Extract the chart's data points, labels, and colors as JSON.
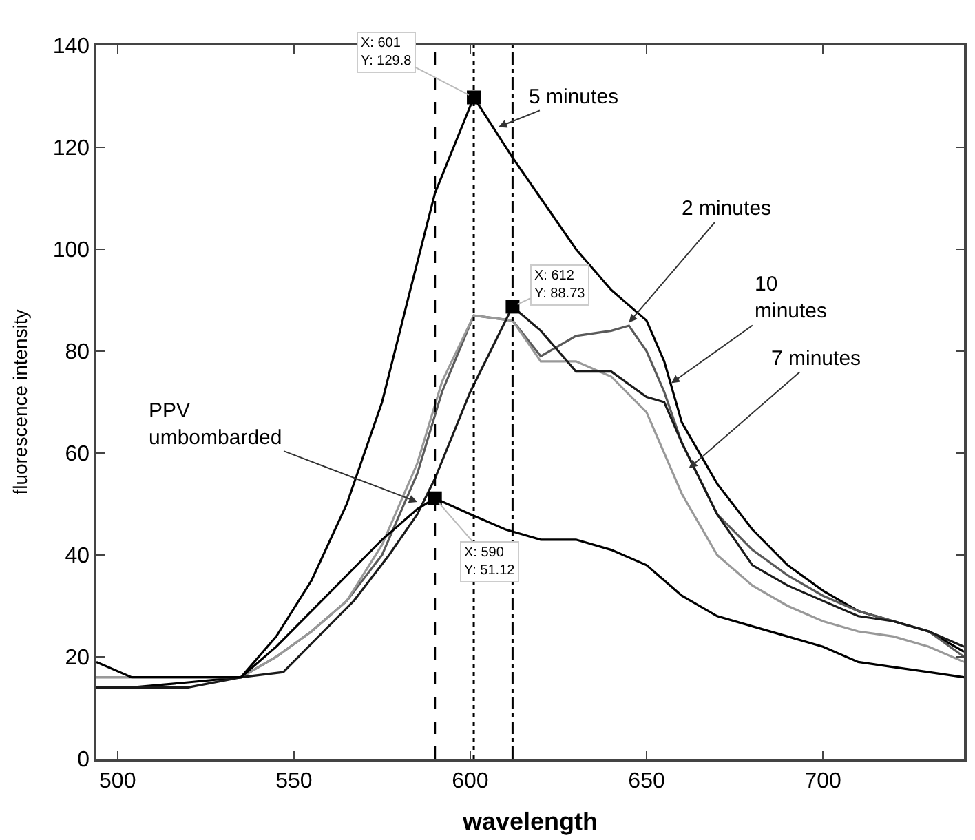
{
  "chart_data": {
    "type": "line",
    "xlabel": "wavelength",
    "ylabel": "fluorescence intensity",
    "xlim": [
      494,
      740
    ],
    "ylim": [
      0,
      140
    ],
    "xticks": [
      500,
      550,
      600,
      650,
      700
    ],
    "yticks": [
      0,
      20,
      40,
      60,
      80,
      100,
      120,
      140
    ],
    "grid": false,
    "series": [
      {
        "color": "#000000",
        "x": [
          494,
          504,
          520,
          535,
          545,
          555,
          565,
          575,
          583,
          590,
          601,
          612,
          620,
          630,
          640,
          650,
          655,
          660,
          670,
          680,
          690,
          700,
          710,
          720,
          730,
          740
        ],
        "values": [
          14,
          14,
          15,
          16,
          24,
          35,
          50,
          70,
          92,
          111,
          129.8,
          118,
          110,
          100,
          92,
          86,
          78,
          66,
          54,
          45,
          38,
          33,
          29,
          27,
          25,
          21
        ]
      },
      {
        "color": "#5a5a5a",
        "x": [
          494,
          504,
          520,
          535,
          545,
          555,
          565,
          575,
          585,
          592,
          601,
          612,
          620,
          630,
          640,
          645,
          650,
          655,
          660,
          670,
          680,
          690,
          700,
          710,
          720,
          730,
          740
        ],
        "values": [
          16,
          16,
          16,
          16,
          20,
          25,
          31,
          40,
          56,
          72,
          87,
          86,
          79,
          83,
          84,
          85,
          80,
          72,
          62,
          48,
          41,
          36,
          32,
          29,
          27,
          25,
          20
        ]
      },
      {
        "color": "#999999",
        "x": [
          494,
          504,
          520,
          535,
          545,
          555,
          565,
          575,
          585,
          592,
          601,
          612,
          620,
          630,
          640,
          650,
          660,
          670,
          680,
          690,
          700,
          710,
          720,
          730,
          740
        ],
        "values": [
          16,
          16,
          16,
          16,
          20,
          25,
          31,
          42,
          58,
          74,
          87,
          86,
          78,
          78,
          75,
          68,
          52,
          40,
          34,
          30,
          27,
          25,
          24,
          22,
          19
        ]
      },
      {
        "color": "#1a1a1a",
        "x": [
          494,
          504,
          520,
          535,
          547,
          557,
          567,
          577,
          585,
          590,
          600,
          612,
          620,
          630,
          640,
          650,
          655,
          660,
          670,
          680,
          690,
          700,
          710,
          720,
          730,
          740
        ],
        "values": [
          14,
          14,
          14,
          16,
          17,
          24,
          31,
          40,
          48,
          55,
          72,
          88.73,
          84,
          76,
          76,
          71,
          70,
          62,
          48,
          38,
          34,
          31,
          28,
          27,
          25,
          22
        ]
      },
      {
        "color": "#000000",
        "x": [
          494,
          504,
          520,
          535,
          545,
          555,
          565,
          575,
          585,
          590,
          600,
          610,
          620,
          630,
          640,
          650,
          655,
          660,
          670,
          680,
          690,
          700,
          710,
          720,
          730,
          740
        ],
        "values": [
          19,
          16,
          16,
          16,
          22,
          29,
          36,
          43,
          49,
          51.12,
          48,
          45,
          43,
          43,
          41,
          38,
          35,
          32,
          28,
          26,
          24,
          22,
          19,
          18,
          17,
          16
        ]
      },
      {
        "type": "scatter",
        "marker": "square",
        "color": "#000000",
        "x": [
          590,
          601,
          612
        ],
        "values": [
          51.12,
          129.8,
          88.73
        ]
      }
    ],
    "ref_lines": [
      {
        "axis": "x",
        "value": 590,
        "color": "#000000",
        "line_style": "dashed"
      },
      {
        "axis": "x",
        "value": 601,
        "color": "#000000",
        "line_style": "dotted"
      },
      {
        "axis": "x",
        "value": 612,
        "color": "#000000",
        "line_style": "dashdot"
      }
    ],
    "annotations": [
      {
        "text": "X: 601\nY: 129.8",
        "x": 601,
        "y": 129.8
      },
      {
        "text": "X: 612\nY: 88.73",
        "x": 612,
        "y": 88.73
      },
      {
        "text": "X: 590\nY: 51.12",
        "x": 590,
        "y": 51.12
      },
      {
        "text": "5 minutes",
        "x": 608,
        "y": 124
      },
      {
        "text": "2 minutes",
        "x": 645,
        "y": 85.6
      },
      {
        "text": "10\nminutes",
        "x": 657,
        "y": 73.7
      },
      {
        "text": "7 minutes",
        "x": 662,
        "y": 57
      },
      {
        "text": "PPV\numbombarded",
        "x": 585,
        "y": 50.4
      }
    ]
  }
}
